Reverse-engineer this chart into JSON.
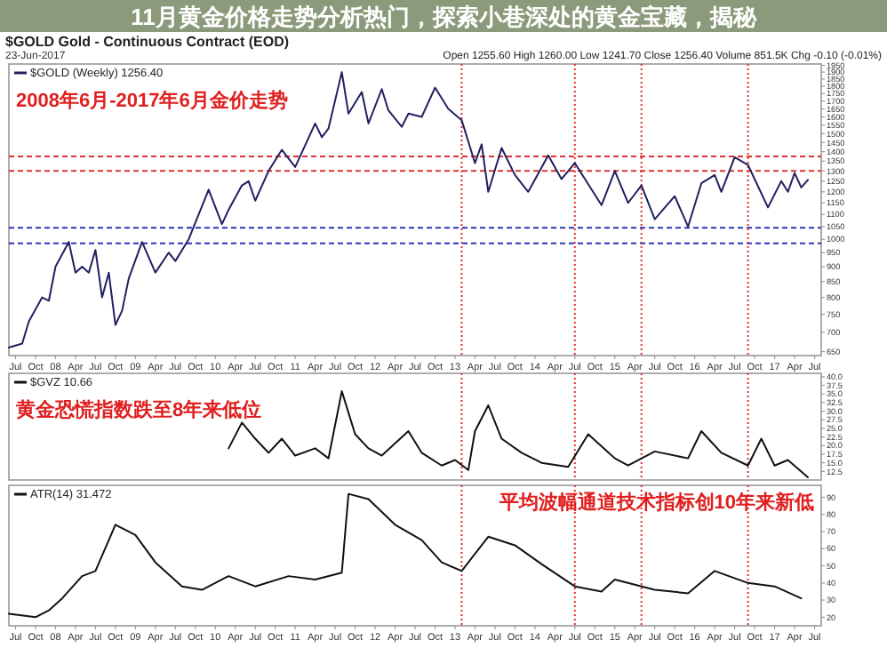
{
  "chart_data": [
    {
      "type": "line",
      "title": "2008年6月-2017年6月金价走势",
      "log": "y",
      "legend": "top left",
      "tick_labels": "xy",
      "annotations": [
        "11月黄金价格走势分析热门，探索小巷深处的黄金宝藏，揭秘",
        "$GOLD Gold - Continuous Contract (EOD)",
        "23-Jun-2017",
        "Open 1255.60 High 1260.00 Low 1241.70 Close 1256.40 Volume 851.5K Chg -0.10 (-0.01%)"
      ],
      "xlim": [
        "2007-06",
        "2017-08"
      ],
      "ylim": [
        640,
        1960
      ],
      "xticks": [
        {
          "value": "2007-07",
          "label": "Jul"
        },
        {
          "value": "2007-10",
          "label": "Oct"
        },
        {
          "value": "2008-01",
          "label": "08"
        },
        {
          "value": "2008-04",
          "label": "Apr"
        },
        {
          "value": "2008-07",
          "label": "Jul"
        },
        {
          "value": "2008-10",
          "label": "Oct"
        },
        {
          "value": "2009-01",
          "label": "09"
        },
        {
          "value": "2009-04",
          "label": "Apr"
        },
        {
          "value": "2009-07",
          "label": "Jul"
        },
        {
          "value": "2009-10",
          "label": "Oct"
        },
        {
          "value": "2010-01",
          "label": "10"
        },
        {
          "value": "2010-04",
          "label": "Apr"
        },
        {
          "value": "2010-07",
          "label": "Jul"
        },
        {
          "value": "2010-10",
          "label": "Oct"
        },
        {
          "value": "2011-01",
          "label": "11"
        },
        {
          "value": "2011-04",
          "label": "Apr"
        },
        {
          "value": "2011-07",
          "label": "Jul"
        },
        {
          "value": "2011-10",
          "label": "Oct"
        },
        {
          "value": "2012-01",
          "label": "12"
        },
        {
          "value": "2012-04",
          "label": "Apr"
        },
        {
          "value": "2012-07",
          "label": "Jul"
        },
        {
          "value": "2012-10",
          "label": "Oct"
        },
        {
          "value": "2013-01",
          "label": "13"
        },
        {
          "value": "2013-04",
          "label": "Apr"
        },
        {
          "value": "2013-07",
          "label": "Jul"
        },
        {
          "value": "2013-10",
          "label": "Oct"
        },
        {
          "value": "2014-01",
          "label": "14"
        },
        {
          "value": "2014-04",
          "label": "Apr"
        },
        {
          "value": "2014-07",
          "label": "Jul"
        },
        {
          "value": "2014-10",
          "label": "Oct"
        },
        {
          "value": "2015-01",
          "label": "15"
        },
        {
          "value": "2015-04",
          "label": "Apr"
        },
        {
          "value": "2015-07",
          "label": "Jul"
        },
        {
          "value": "2015-10",
          "label": "Oct"
        },
        {
          "value": "2016-01",
          "label": "16"
        },
        {
          "value": "2016-04",
          "label": "Apr"
        },
        {
          "value": "2016-07",
          "label": "Jul"
        },
        {
          "value": "2016-10",
          "label": "Oct"
        },
        {
          "value": "2017-01",
          "label": "17"
        },
        {
          "value": "2017-04",
          "label": "Apr"
        },
        {
          "value": "2017-07",
          "label": "Jul"
        }
      ],
      "yticks": [
        650,
        700,
        750,
        800,
        850,
        900,
        950,
        1000,
        1050,
        1100,
        1150,
        1200,
        1250,
        1300,
        1350,
        1400,
        1450,
        1500,
        1550,
        1600,
        1650,
        1700,
        1750,
        1800,
        1850,
        1900,
        1950
      ],
      "ref_lines": [
        {
          "axis": "y",
          "value": 1375,
          "color": "#e03030",
          "line_style": "dashed"
        },
        {
          "axis": "y",
          "value": 1300,
          "color": "#e03030",
          "line_style": "dashed"
        },
        {
          "axis": "y",
          "value": 1045,
          "color": "#3030c0",
          "line_style": "dashed"
        },
        {
          "axis": "y",
          "value": 985,
          "color": "#3030c0",
          "line_style": "dashed"
        },
        {
          "axis": "x",
          "value": "2013-02",
          "color": "#e03030",
          "line_style": "dotted"
        },
        {
          "axis": "x",
          "value": "2014-07",
          "color": "#e03030",
          "line_style": "dotted"
        },
        {
          "axis": "x",
          "value": "2015-05",
          "color": "#e03030",
          "line_style": "dotted"
        },
        {
          "axis": "x",
          "value": "2016-09",
          "color": "#e03030",
          "line_style": "dotted"
        }
      ],
      "series": [
        {
          "name": "$GOLD (Weekly) 1256.40",
          "color": "#202060",
          "x": [
            "2007-06",
            "2007-08",
            "2007-09",
            "2007-11",
            "2007-12",
            "2008-01",
            "2008-03",
            "2008-04",
            "2008-05",
            "2008-06",
            "2008-07",
            "2008-08",
            "2008-09",
            "2008-10",
            "2008-11",
            "2008-12",
            "2009-02",
            "2009-04",
            "2009-06",
            "2009-07",
            "2009-09",
            "2009-12",
            "2010-02",
            "2010-03",
            "2010-05",
            "2010-06",
            "2010-07",
            "2010-09",
            "2010-11",
            "2011-01",
            "2011-04",
            "2011-05",
            "2011-06",
            "2011-08",
            "2011-09",
            "2011-11",
            "2011-12",
            "2012-02",
            "2012-03",
            "2012-05",
            "2012-06",
            "2012-08",
            "2012-10",
            "2012-12",
            "2013-02",
            "2013-04",
            "2013-05",
            "2013-06",
            "2013-08",
            "2013-10",
            "2013-12",
            "2014-03",
            "2014-05",
            "2014-07",
            "2014-11",
            "2015-01",
            "2015-03",
            "2015-05",
            "2015-07",
            "2015-10",
            "2015-12",
            "2016-02",
            "2016-04",
            "2016-05",
            "2016-07",
            "2016-09",
            "2016-10",
            "2016-12",
            "2017-02",
            "2017-03",
            "2017-04",
            "2017-05",
            "2017-06"
          ],
          "values": [
            660,
            670,
            730,
            800,
            790,
            900,
            990,
            880,
            900,
            880,
            960,
            800,
            880,
            720,
            760,
            860,
            990,
            880,
            950,
            920,
            1000,
            1210,
            1060,
            1120,
            1230,
            1250,
            1160,
            1300,
            1410,
            1320,
            1560,
            1480,
            1530,
            1900,
            1620,
            1760,
            1560,
            1780,
            1640,
            1540,
            1620,
            1600,
            1790,
            1650,
            1580,
            1340,
            1440,
            1200,
            1420,
            1280,
            1200,
            1380,
            1260,
            1340,
            1140,
            1300,
            1150,
            1230,
            1080,
            1180,
            1050,
            1240,
            1280,
            1200,
            1370,
            1330,
            1260,
            1130,
            1250,
            1200,
            1290,
            1220,
            1256
          ]
        }
      ]
    },
    {
      "type": "line",
      "title": "黄金恐慌指数跌至8年来低位",
      "legend": "top left",
      "tick_labels": "y",
      "xlim": [
        "2007-06",
        "2017-08"
      ],
      "ylim": [
        10,
        41
      ],
      "yticks": [
        12.5,
        {
          "value": 15,
          "label": "15.0"
        },
        17.5,
        {
          "value": 20,
          "label": "20.0"
        },
        22.5,
        {
          "value": 25,
          "label": "25.0"
        },
        27.5,
        {
          "value": 30,
          "label": "30.0"
        },
        32.5,
        {
          "value": 35,
          "label": "35.0"
        },
        37.5,
        {
          "value": 40,
          "label": "40.0"
        }
      ],
      "ref_lines": [
        {
          "axis": "x",
          "value": "2013-02",
          "color": "#e03030",
          "line_style": "dotted"
        },
        {
          "axis": "x",
          "value": "2014-07",
          "color": "#e03030",
          "line_style": "dotted"
        },
        {
          "axis": "x",
          "value": "2015-05",
          "color": "#e03030",
          "line_style": "dotted"
        },
        {
          "axis": "x",
          "value": "2016-09",
          "color": "#e03030",
          "line_style": "dotted"
        }
      ],
      "series": [
        {
          "name": "$GVZ 10.66",
          "color": "#111111",
          "x": [
            "2010-03",
            "2010-05",
            "2010-07",
            "2010-09",
            "2010-11",
            "2011-01",
            "2011-04",
            "2011-06",
            "2011-08",
            "2011-10",
            "2011-12",
            "2012-02",
            "2012-06",
            "2012-08",
            "2012-11",
            "2013-01",
            "2013-03",
            "2013-04",
            "2013-06",
            "2013-08",
            "2013-11",
            "2014-02",
            "2014-06",
            "2014-09",
            "2015-01",
            "2015-03",
            "2015-07",
            "2015-12",
            "2016-02",
            "2016-05",
            "2016-09",
            "2016-11",
            "2017-01",
            "2017-03",
            "2017-06"
          ],
          "values": [
            19.2,
            26.7,
            22,
            17.9,
            22,
            17.1,
            19.2,
            16.3,
            35.8,
            23.3,
            19.2,
            17.1,
            24.2,
            17.9,
            14.2,
            15.8,
            12.9,
            24.2,
            31.7,
            22,
            17.9,
            15,
            13.8,
            23.3,
            16.3,
            14.2,
            18.3,
            16.3,
            24.2,
            17.9,
            14.2,
            22,
            14.2,
            15.8,
            10.8
          ]
        }
      ]
    },
    {
      "type": "line",
      "title": "平均波幅通道技术指标创10年来新低",
      "legend": "top left",
      "xlim": [
        "2007-06",
        "2017-08"
      ],
      "ylim": [
        15,
        97
      ],
      "xticks": [
        {
          "value": "2007-07",
          "label": "Jul"
        },
        {
          "value": "2007-10",
          "label": "Oct"
        },
        {
          "value": "2008-01",
          "label": "08"
        },
        {
          "value": "2008-04",
          "label": "Apr"
        },
        {
          "value": "2008-07",
          "label": "Jul"
        },
        {
          "value": "2008-10",
          "label": "Oct"
        },
        {
          "value": "2009-01",
          "label": "09"
        },
        {
          "value": "2009-04",
          "label": "Apr"
        },
        {
          "value": "2009-07",
          "label": "Jul"
        },
        {
          "value": "2009-10",
          "label": "Oct"
        },
        {
          "value": "2010-01",
          "label": "10"
        },
        {
          "value": "2010-04",
          "label": "Apr"
        },
        {
          "value": "2010-07",
          "label": "Jul"
        },
        {
          "value": "2010-10",
          "label": "Oct"
        },
        {
          "value": "2011-01",
          "label": "11"
        },
        {
          "value": "2011-04",
          "label": "Apr"
        },
        {
          "value": "2011-07",
          "label": "Jul"
        },
        {
          "value": "2011-10",
          "label": "Oct"
        },
        {
          "value": "2012-01",
          "label": "12"
        },
        {
          "value": "2012-04",
          "label": "Apr"
        },
        {
          "value": "2012-07",
          "label": "Jul"
        },
        {
          "value": "2012-10",
          "label": "Oct"
        },
        {
          "value": "2013-01",
          "label": "13"
        },
        {
          "value": "2013-04",
          "label": "Apr"
        },
        {
          "value": "2013-07",
          "label": "Jul"
        },
        {
          "value": "2013-10",
          "label": "Oct"
        },
        {
          "value": "2014-01",
          "label": "14"
        },
        {
          "value": "2014-04",
          "label": "Apr"
        },
        {
          "value": "2014-07",
          "label": "Jul"
        },
        {
          "value": "2014-10",
          "label": "Oct"
        },
        {
          "value": "2015-01",
          "label": "15"
        },
        {
          "value": "2015-04",
          "label": "Apr"
        },
        {
          "value": "2015-07",
          "label": "Jul"
        },
        {
          "value": "2015-10",
          "label": "Oct"
        },
        {
          "value": "2016-01",
          "label": "16"
        },
        {
          "value": "2016-04",
          "label": "Apr"
        },
        {
          "value": "2016-07",
          "label": "Jul"
        },
        {
          "value": "2016-10",
          "label": "Oct"
        },
        {
          "value": "2017-01",
          "label": "17"
        },
        {
          "value": "2017-04",
          "label": "Apr"
        },
        {
          "value": "2017-07",
          "label": "Jul"
        }
      ],
      "yticks": [
        20,
        30,
        40,
        50,
        60,
        70,
        80,
        90
      ],
      "ref_lines": [
        {
          "axis": "x",
          "value": "2013-02",
          "color": "#e03030",
          "line_style": "dotted"
        },
        {
          "axis": "x",
          "value": "2014-07",
          "color": "#e03030",
          "line_style": "dotted"
        },
        {
          "axis": "x",
          "value": "2015-05",
          "color": "#e03030",
          "line_style": "dotted"
        },
        {
          "axis": "x",
          "value": "2016-09",
          "color": "#e03030",
          "line_style": "dotted"
        }
      ],
      "series": [
        {
          "name": "ATR(14) 31.472",
          "color": "#111111",
          "x": [
            "2007-06",
            "2007-10",
            "2007-12",
            "2008-02",
            "2008-05",
            "2008-07",
            "2008-10",
            "2009-01",
            "2009-04",
            "2009-08",
            "2009-11",
            "2010-03",
            "2010-07",
            "2010-12",
            "2011-04",
            "2011-08",
            "2011-09",
            "2011-12",
            "2012-04",
            "2012-08",
            "2012-11",
            "2013-02",
            "2013-05",
            "2013-06",
            "2013-10",
            "2014-02",
            "2014-07",
            "2014-11",
            "2015-01",
            "2015-07",
            "2015-12",
            "2016-04",
            "2016-09",
            "2017-01",
            "2017-05"
          ],
          "values": [
            22,
            20,
            24,
            31,
            44,
            47,
            74,
            68,
            52,
            38,
            36,
            44,
            38,
            44,
            42,
            46,
            92,
            89,
            74,
            65,
            52,
            47,
            62,
            67,
            62,
            51,
            38,
            35,
            42,
            36,
            34,
            47,
            40,
            38,
            31
          ]
        }
      ]
    }
  ]
}
